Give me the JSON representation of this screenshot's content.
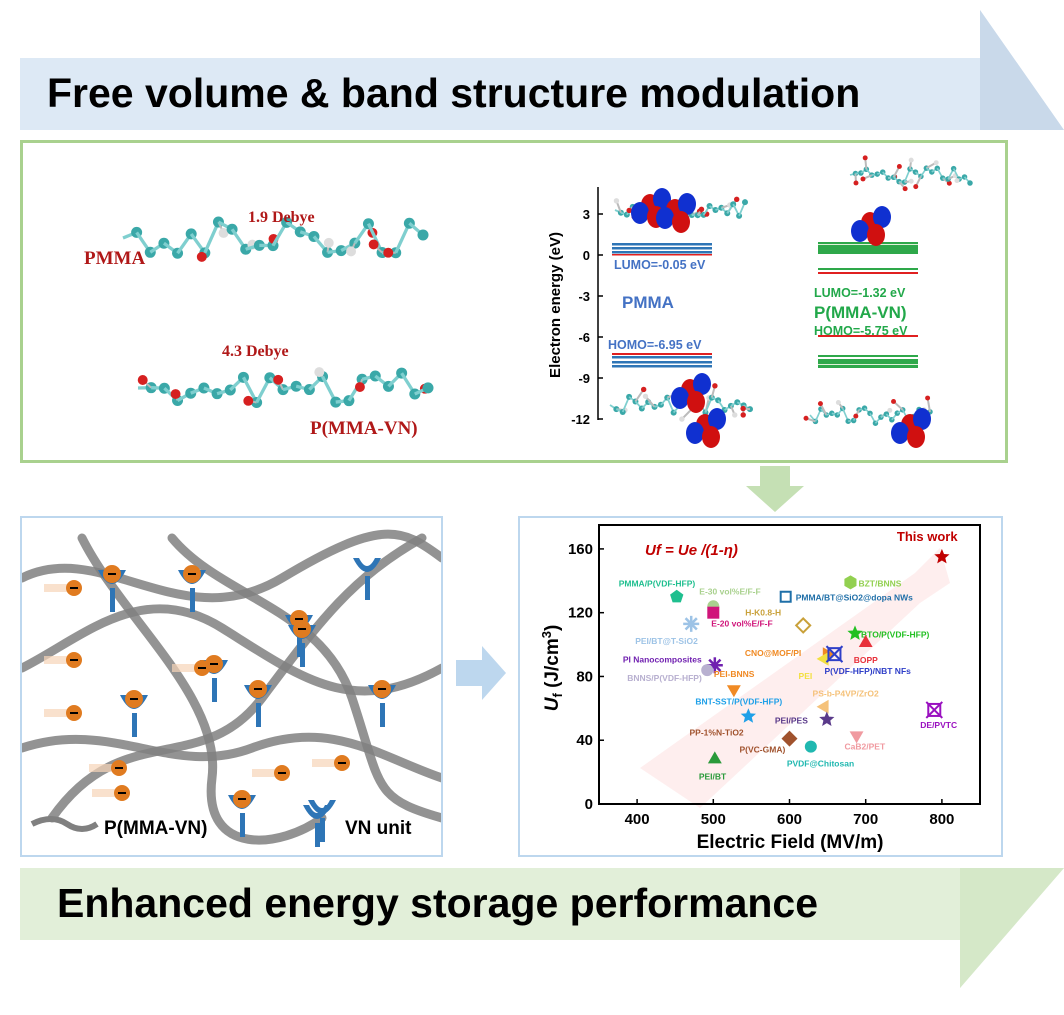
{
  "top_banner": {
    "title": "Free volume & band structure modulation",
    "color": "#dde9f5"
  },
  "bottom_banner": {
    "title": "Enhanced energy storage performance",
    "color": "#e2efd9"
  },
  "molecules": {
    "pmma_label": "PMMA",
    "pmma_dipole": "1.9 Debye",
    "copolymer_label": "P(MMA-VN)",
    "copolymer_dipole": "4.3 Debye"
  },
  "band_diagram": {
    "ylabel": "Electron energy (eV)",
    "yticks": [
      "3",
      "0",
      "-3",
      "-6",
      "-9",
      "-12"
    ],
    "pmma": {
      "name": "PMMA",
      "lumo": "LUMO=-0.05 eV",
      "homo": "HOMO=-6.95 eV",
      "color": "#4472c4"
    },
    "copolymer": {
      "name": "P(MMA-VN)",
      "lumo": "LUMO=-1.32 eV",
      "homo": "HOMO=-5.75 eV",
      "color": "#22a84a"
    }
  },
  "schematic": {
    "legend_chain": "P(MMA-VN)",
    "legend_unit": "VN unit"
  },
  "chart_data": {
    "type": "scatter",
    "xlabel": "Electric Field (MV/m)",
    "ylabel": "Uf (J/cm3)",
    "ylabel_main": "U",
    "ylabel_sub": "f",
    "ylabel_unit": " (J/cm",
    "ylabel_sup": "3",
    "ylabel_close": ")",
    "formula": "Uf = Ue /(1-η)",
    "xlim": [
      350,
      850
    ],
    "ylim": [
      0,
      175
    ],
    "xticks": [
      400,
      500,
      600,
      700,
      800
    ],
    "yticks": [
      0,
      40,
      80,
      120,
      160
    ],
    "points": [
      {
        "name": "This work",
        "x": 800,
        "y": 155,
        "marker": "star",
        "color": "#c00000"
      },
      {
        "name": "BZT/BNNS",
        "x": 680,
        "y": 139,
        "marker": "hexagon",
        "color": "#92d050"
      },
      {
        "name": "PMMA/P(VDF-HFP)",
        "x": 452,
        "y": 130,
        "marker": "pentagon",
        "color": "#1fbf8f"
      },
      {
        "name": "E-30 vol%E/F-F",
        "x": 500,
        "y": 124,
        "marker": "circle",
        "color": "#a9d18e"
      },
      {
        "name": "E-20 vol%E/F-F",
        "x": 500,
        "y": 120,
        "marker": "square",
        "color": "#d0157a"
      },
      {
        "name": "PMMA/BT@SiO2@dopa NWs",
        "x": 595,
        "y": 130,
        "marker": "square-open",
        "color": "#1f6fa8"
      },
      {
        "name": "H-K0.8-H",
        "x": 618,
        "y": 112,
        "marker": "diamond-open",
        "color": "#c9a13a"
      },
      {
        "name": "PEI/BT@T-SiO2",
        "x": 471,
        "y": 113,
        "marker": "asterisk",
        "color": "#9dc3e6"
      },
      {
        "name": "BTO/P(VDF-HFP)",
        "x": 686,
        "y": 107,
        "marker": "star",
        "color": "#22c022"
      },
      {
        "name": "BOPP",
        "x": 700,
        "y": 101,
        "marker": "triangle-up",
        "color": "#e8303a"
      },
      {
        "name": "CNO@MOF/PI",
        "x": 649,
        "y": 94,
        "marker": "triangle-right",
        "color": "#f08a24"
      },
      {
        "name": "PEI",
        "x": 646,
        "y": 91,
        "marker": "triangle-left",
        "color": "#f2e040"
      },
      {
        "name": "P(VDF-HFP)/NBT NFs",
        "x": 659,
        "y": 94,
        "marker": "cross-square",
        "color": "#2f3fc8"
      },
      {
        "name": "PI Nanocomposites",
        "x": 502,
        "y": 87,
        "marker": "asterisk",
        "color": "#7020b0"
      },
      {
        "name": "BNNS/P(VDF-HFP)",
        "x": 492,
        "y": 84,
        "marker": "circle",
        "color": "#b8b0d0"
      },
      {
        "name": "PEI-BNNS",
        "x": 527,
        "y": 72,
        "marker": "triangle-down",
        "color": "#f08a24"
      },
      {
        "name": "PS-b-P4VP/ZrO2",
        "x": 646,
        "y": 61,
        "marker": "triangle-left",
        "color": "#f5c27a"
      },
      {
        "name": "BNT-SST/P(VDF-HFP)",
        "x": 546,
        "y": 55,
        "marker": "star",
        "color": "#1fa0e8"
      },
      {
        "name": "PEI/PES",
        "x": 649,
        "y": 53,
        "marker": "star",
        "color": "#5a3a8a"
      },
      {
        "name": "DE/PVTC",
        "x": 790,
        "y": 59,
        "marker": "cross-square",
        "color": "#9a10c0"
      },
      {
        "name": "CaB2/PET",
        "x": 688,
        "y": 43,
        "marker": "triangle-down",
        "color": "#f09aa0"
      },
      {
        "name": "P(VC-GMA)",
        "x": 600,
        "y": 41,
        "marker": "diamond",
        "color": "#a0522d"
      },
      {
        "name": "PP-1%N-TiO2",
        "x": 600,
        "y": 41,
        "marker": "none",
        "color": "#a0522d"
      },
      {
        "name": "PVDF@Chitosan",
        "x": 628,
        "y": 36,
        "marker": "circle",
        "color": "#20b8b0"
      },
      {
        "name": "PEI/BT",
        "x": 502,
        "y": 28,
        "marker": "triangle-up",
        "color": "#2a9a3a"
      }
    ]
  }
}
